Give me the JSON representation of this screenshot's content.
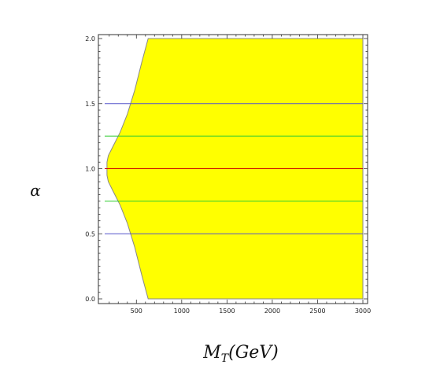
{
  "chart_data": {
    "type": "area",
    "title": "",
    "xlabel": "M_T(GeV)",
    "ylabel": "α",
    "xlim": [
      150,
      3000
    ],
    "ylim": [
      0,
      2.0
    ],
    "xticks": [
      "500",
      "1000",
      "1500",
      "2000",
      "2500",
      "3000"
    ],
    "yticks": [
      "0.0",
      "0.5",
      "1.0",
      "1.5",
      "2.0"
    ],
    "region": {
      "name": "",
      "fill": "#ffff00",
      "outline": "#888888",
      "boundary": [
        {
          "x": 630,
          "y": 2.0
        },
        {
          "x": 560,
          "y": 1.82
        },
        {
          "x": 480,
          "y": 1.6
        },
        {
          "x": 400,
          "y": 1.42
        },
        {
          "x": 320,
          "y": 1.28
        },
        {
          "x": 240,
          "y": 1.17
        },
        {
          "x": 190,
          "y": 1.1
        },
        {
          "x": 175,
          "y": 1.05
        },
        {
          "x": 175,
          "y": 0.95
        },
        {
          "x": 190,
          "y": 0.9
        },
        {
          "x": 240,
          "y": 0.83
        },
        {
          "x": 320,
          "y": 0.72
        },
        {
          "x": 400,
          "y": 0.58
        },
        {
          "x": 480,
          "y": 0.4
        },
        {
          "x": 560,
          "y": 0.18
        },
        {
          "x": 630,
          "y": 0.0
        },
        {
          "x": 3000,
          "y": 0.0
        },
        {
          "x": 3000,
          "y": 2.0
        }
      ]
    },
    "reference_lines": [
      {
        "y": 1.5,
        "color": "#5555cc"
      },
      {
        "y": 1.25,
        "color": "#33cc33"
      },
      {
        "y": 1.0,
        "color": "#cc0000"
      },
      {
        "y": 0.75,
        "color": "#33cc33"
      },
      {
        "y": 0.5,
        "color": "#5555cc"
      }
    ],
    "grid": false,
    "legend": "none"
  }
}
